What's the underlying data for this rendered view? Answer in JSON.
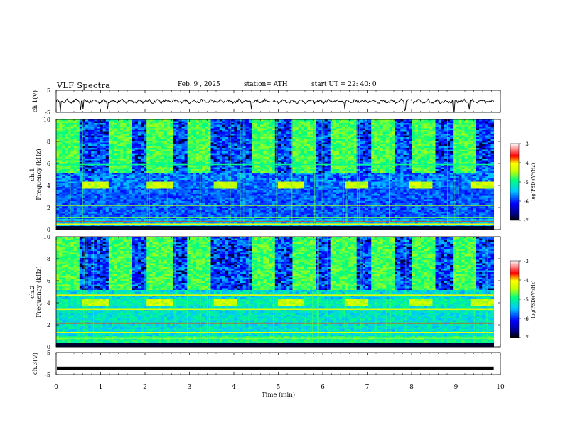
{
  "header": {
    "title": "VLF  Spectra",
    "date": "Feb. 9  , 2025",
    "station": "station= ATH",
    "start_ut": "start  UT  =   22: 40: 0"
  },
  "chart_data": [
    {
      "type": "line",
      "panel": "ch1-timeseries",
      "ylabel": "ch.1(V)",
      "ylim": [
        -5,
        5
      ],
      "yticks": [
        "5",
        "-5"
      ],
      "xlim": [
        0,
        10
      ],
      "baseline": 0,
      "note_values": "noisy trace near 0 V with brief negative spikes",
      "spikes_at_min": [
        0.1,
        0.55,
        0.6,
        1.15,
        4.4,
        6.5,
        7.85,
        8.95,
        9.3
      ]
    },
    {
      "type": "heatmap",
      "panel": "ch1-spectrogram",
      "ylabel": "ch.1\nFrequency (kHz)",
      "ylim": [
        0,
        10
      ],
      "yticks": [
        "0",
        "2",
        "4",
        "6",
        "8",
        "10"
      ],
      "xlim": [
        0,
        10
      ],
      "colorbar": {
        "label": "log(PSD)(V²/Hz)",
        "range": [
          -7,
          -3
        ],
        "ticks": [
          "-3",
          "-4",
          "-5",
          "-6",
          "-7"
        ],
        "colors": [
          "#000000",
          "#0000ff",
          "#00c8ff",
          "#00ff80",
          "#ffff00",
          "#ff0000",
          "#ffffff"
        ]
      },
      "strong_bursts_start_min": [
        0.0,
        1.15,
        2.05,
        2.95,
        4.4,
        5.3,
        6.2,
        7.1,
        8.0,
        8.9
      ],
      "tone_band_khz": [
        3.7,
        4.3
      ],
      "tone_band_intervals_min": [
        [
          0.6,
          1.15
        ],
        [
          2.05,
          2.6
        ],
        [
          3.55,
          4.05
        ],
        [
          5.0,
          5.55
        ],
        [
          6.5,
          7.05
        ],
        [
          7.95,
          8.45
        ],
        [
          9.35,
          9.85
        ]
      ]
    },
    {
      "type": "heatmap",
      "panel": "ch2-spectrogram",
      "ylabel": "ch.2\nFrequency (kHz)",
      "ylim": [
        0,
        10
      ],
      "yticks": [
        "0",
        "2",
        "4",
        "6",
        "8",
        "10"
      ],
      "xlim": [
        0,
        10
      ],
      "colorbar": {
        "label": "log(PSD)(V²/Hz)",
        "range": [
          -7,
          -3
        ],
        "ticks": [
          "-3",
          "-4",
          "-5",
          "-6",
          "-7"
        ],
        "colors": [
          "#000000",
          "#0000ff",
          "#00c8ff",
          "#00ff80",
          "#ffff00",
          "#ff0000",
          "#ffffff"
        ]
      },
      "strong_bursts_start_min": [
        0.0,
        1.15,
        2.05,
        2.95,
        4.4,
        5.3,
        6.2,
        7.1,
        8.0,
        8.9
      ],
      "tone_band_khz": [
        3.7,
        4.3
      ],
      "tone_band_intervals_min": [
        [
          0.6,
          1.15
        ],
        [
          2.05,
          2.6
        ],
        [
          3.55,
          4.05
        ],
        [
          5.0,
          5.55
        ],
        [
          6.5,
          7.05
        ],
        [
          7.95,
          8.45
        ],
        [
          9.35,
          9.85
        ]
      ]
    },
    {
      "type": "line",
      "panel": "ch3-timeseries",
      "ylabel": "ch.3(V)",
      "ylim": [
        -5,
        5
      ],
      "yticks": [
        "5",
        "-5"
      ],
      "xlim": [
        0,
        10
      ],
      "baseline": -2.2
    }
  ],
  "x_axis": {
    "label": "Time  (min)",
    "ticks": [
      "0",
      "1",
      "2",
      "3",
      "4",
      "5",
      "6",
      "7",
      "8",
      "9",
      "10"
    ],
    "data_end_min": 9.85
  }
}
